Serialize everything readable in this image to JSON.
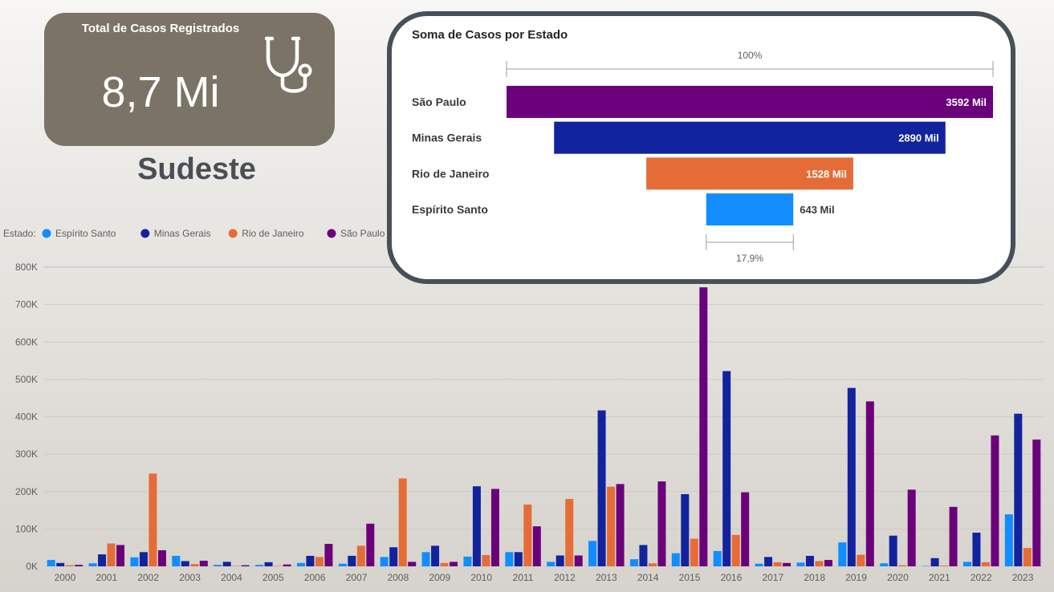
{
  "kpi": {
    "title": "Total de Casos Registrados",
    "value": "8,7 Mi",
    "icon": "stethoscope-icon"
  },
  "region": "Sudeste",
  "colors": {
    "espirito_santo": "#118dff",
    "minas_gerais": "#12239e",
    "rio_de_janeiro": "#e66c37",
    "sao_paulo": "#6b007b",
    "kpi_bg": "#7b7365"
  },
  "funnel": {
    "title": "Soma de Casos por Estado",
    "top_pct": "100%",
    "bottom_pct": "17,9%",
    "items": [
      {
        "label": "São Paulo",
        "value": 3592,
        "value_label": "3592 Mil",
        "color": "#6b007b"
      },
      {
        "label": "Minas Gerais",
        "value": 2890,
        "value_label": "2890 Mil",
        "color": "#12239e"
      },
      {
        "label": "Rio de Janeiro",
        "value": 1528,
        "value_label": "1528 Mil",
        "color": "#e66c37"
      },
      {
        "label": "Espírito Santo",
        "value": 643,
        "value_label": "643 Mil",
        "color": "#118dff"
      }
    ]
  },
  "chart_data": {
    "type": "bar",
    "legend_title": "Estado:",
    "legend_position": "top-left",
    "grid": true,
    "ylim": [
      0,
      800000
    ],
    "yticks": [
      "0K",
      "100K",
      "200K",
      "300K",
      "400K",
      "500K",
      "600K",
      "700K",
      "800K"
    ],
    "categories": [
      "2000",
      "2001",
      "2002",
      "2003",
      "2004",
      "2005",
      "2006",
      "2007",
      "2008",
      "2009",
      "2010",
      "2011",
      "2012",
      "2013",
      "2014",
      "2015",
      "2016",
      "2017",
      "2018",
      "2019",
      "2020",
      "2021",
      "2022",
      "2023"
    ],
    "series": [
      {
        "name": "Espírito Santo",
        "color": "#118dff",
        "values": [
          17000,
          8000,
          24000,
          28000,
          4000,
          4000,
          9000,
          7000,
          25000,
          38000,
          26000,
          38000,
          12000,
          68000,
          19000,
          35000,
          41000,
          7000,
          10000,
          64000,
          8000,
          1000,
          12000,
          139000
        ]
      },
      {
        "name": "Minas Gerais",
        "color": "#12239e",
        "values": [
          9000,
          32000,
          38000,
          14000,
          12000,
          11000,
          28000,
          28000,
          51000,
          55000,
          214000,
          38000,
          29000,
          417000,
          57000,
          193000,
          522000,
          25000,
          28000,
          477000,
          82000,
          22000,
          90000,
          408000
        ]
      },
      {
        "name": "Rio de Janeiro",
        "color": "#e66c37",
        "values": [
          3000,
          61000,
          248000,
          6000,
          1000,
          1000,
          25000,
          55000,
          235000,
          9000,
          30000,
          165000,
          180000,
          213000,
          8000,
          74000,
          84000,
          11000,
          14000,
          31000,
          3000,
          2000,
          11000,
          49000
        ]
      },
      {
        "name": "São Paulo",
        "color": "#6b007b",
        "values": [
          4000,
          57000,
          43000,
          15000,
          3000,
          5000,
          60000,
          114000,
          12000,
          12000,
          207000,
          107000,
          29000,
          220000,
          227000,
          746000,
          198000,
          9000,
          17000,
          441000,
          205000,
          159000,
          350000,
          339000
        ]
      }
    ]
  }
}
